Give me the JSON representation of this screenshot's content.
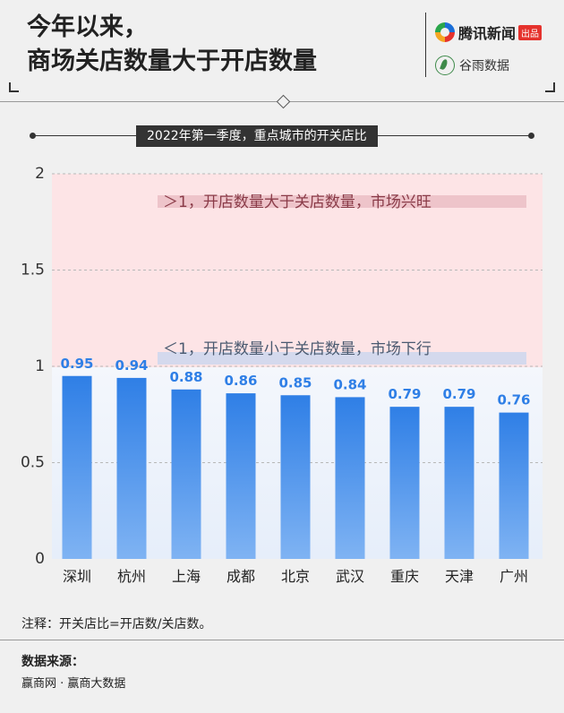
{
  "header": {
    "title_line1": "今年以来，",
    "title_line2": "商场关店数量大于开店数量",
    "brand1_name": "腾讯新闻",
    "brand1_tag": "出品",
    "brand2_name": "谷雨数据"
  },
  "subtitle": "2022年第一季度，重点城市的开关店比",
  "zones": {
    "upper_label": "＞1，开店数量大于关店数量，市场兴旺",
    "lower_label": "＜1，开店数量小于关店数量，市场下行",
    "upper_color": "#fde4e6",
    "lower_color": "#f4f7fc",
    "upper_text_color": "#8a3b48",
    "lower_text_color": "#4a5a70"
  },
  "chart_data": {
    "type": "bar",
    "title": "2022年第一季度，重点城市的开关店比",
    "categories": [
      "深圳",
      "杭州",
      "上海",
      "成都",
      "北京",
      "武汉",
      "重庆",
      "天津",
      "广州"
    ],
    "values": [
      0.95,
      0.94,
      0.88,
      0.86,
      0.85,
      0.84,
      0.79,
      0.79,
      0.76
    ],
    "value_labels": [
      "0.95",
      "0.94",
      "0.88",
      "0.86",
      "0.85",
      "0.84",
      "0.79",
      "0.79",
      "0.76"
    ],
    "ylim": [
      0,
      2
    ],
    "yticks": [
      0,
      0.5,
      1,
      1.5,
      2
    ],
    "ytick_labels": [
      "0",
      "0.5",
      "1",
      "1.5",
      "2"
    ],
    "grid": true,
    "bar_color_top": "#2f7fe6",
    "bar_color_bottom": "#7fb3f3",
    "label_color": "#2f7fe6"
  },
  "footer": {
    "note": "注释：开关店比=开店数/关店数。",
    "source_heading": "数据来源：",
    "source": "赢商网 · 赢商大数据"
  }
}
